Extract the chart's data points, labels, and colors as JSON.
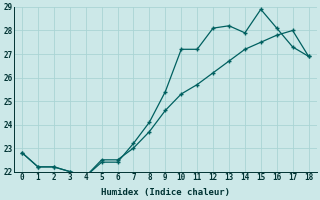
{
  "xlabel": "Humidex (Indice chaleur)",
  "bg_color": "#cce8e8",
  "grid_color": "#aad4d4",
  "line_color": "#006060",
  "series1_x": [
    0,
    1,
    2,
    3,
    4,
    5,
    6,
    7,
    8,
    9,
    10,
    11,
    12,
    13,
    14,
    15,
    16,
    17,
    18
  ],
  "series1_y": [
    22.8,
    22.2,
    22.2,
    22.0,
    21.8,
    22.4,
    22.4,
    23.2,
    24.1,
    25.4,
    27.2,
    27.2,
    28.1,
    28.2,
    27.9,
    28.9,
    28.1,
    27.3,
    26.9
  ],
  "series2_x": [
    0,
    1,
    2,
    3,
    4,
    5,
    6,
    7,
    8,
    9,
    10,
    11,
    12,
    13,
    14,
    15,
    16,
    17,
    18
  ],
  "series2_y": [
    22.8,
    22.2,
    22.2,
    22.0,
    21.8,
    22.5,
    22.5,
    23.0,
    23.7,
    24.6,
    25.3,
    25.7,
    26.2,
    26.7,
    27.2,
    27.5,
    27.8,
    28.0,
    26.9
  ],
  "ylim": [
    22,
    29
  ],
  "xlim": [
    -0.5,
    18.5
  ],
  "yticks": [
    22,
    23,
    24,
    25,
    26,
    27,
    28,
    29
  ],
  "xticks": [
    0,
    1,
    2,
    3,
    4,
    5,
    6,
    7,
    8,
    9,
    10,
    11,
    12,
    13,
    14,
    15,
    16,
    17,
    18
  ]
}
